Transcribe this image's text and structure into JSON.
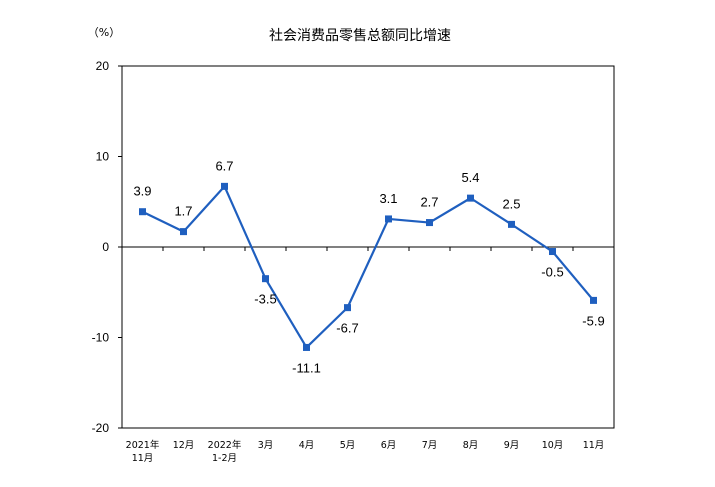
{
  "chart_data": {
    "type": "line",
    "title": "社会消费品零售总额同比增速",
    "unit": "（%）",
    "ylim": [
      -20,
      20
    ],
    "yticks": [
      20,
      10,
      0,
      -10,
      -20
    ],
    "categories": [
      [
        "2021年",
        "11月"
      ],
      [
        "12月"
      ],
      [
        "2022年",
        "1-2月"
      ],
      [
        "3月"
      ],
      [
        "4月"
      ],
      [
        "5月"
      ],
      [
        "6月"
      ],
      [
        "7月"
      ],
      [
        "8月"
      ],
      [
        "9月"
      ],
      [
        "10月"
      ],
      [
        "11月"
      ]
    ],
    "series": [
      {
        "values": [
          3.9,
          1.7,
          6.7,
          -3.5,
          -11.1,
          -6.7,
          3.1,
          2.7,
          5.4,
          2.5,
          -0.5,
          -5.9
        ],
        "data_labels": [
          "3.9",
          "1.7",
          "6.7",
          "-3.5",
          "-11.1",
          "-6.7",
          "3.1",
          "2.7",
          "5.4",
          "2.5",
          "-0.5",
          "-5.9"
        ],
        "label_side": [
          "above",
          "above",
          "above",
          "below",
          "below",
          "below",
          "above",
          "above",
          "above",
          "above",
          "below",
          "below"
        ],
        "color": "#1f5fbf"
      }
    ],
    "grid": false,
    "legend": "none"
  }
}
